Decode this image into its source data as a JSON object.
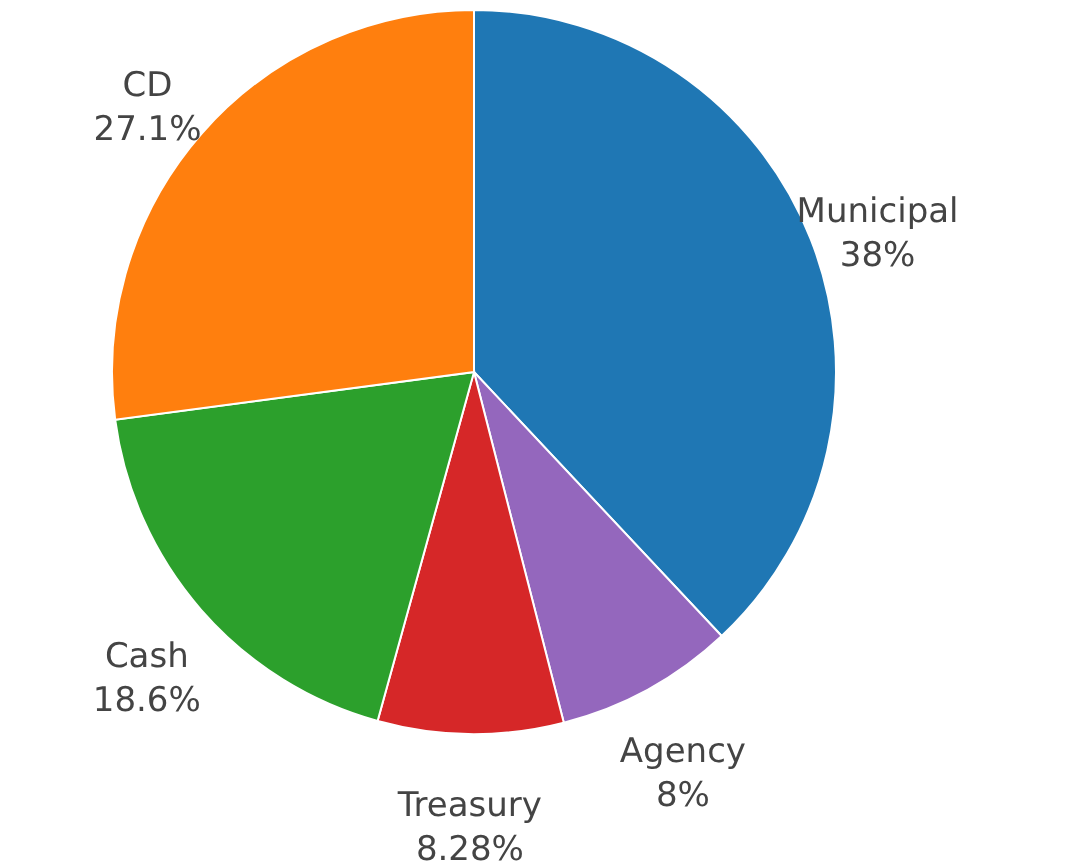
{
  "chart_data": {
    "type": "pie",
    "categories": [
      "Municipal",
      "Agency",
      "Treasury",
      "Cash",
      "CD"
    ],
    "values": [
      38,
      8,
      8.28,
      18.6,
      27.1
    ],
    "value_labels": [
      "38%",
      "8%",
      "8.28%",
      "18.6%",
      "27.1%"
    ],
    "colors": [
      "#1f77b4",
      "#9467bd",
      "#d62728",
      "#2ca02c",
      "#ff7f0e"
    ]
  }
}
